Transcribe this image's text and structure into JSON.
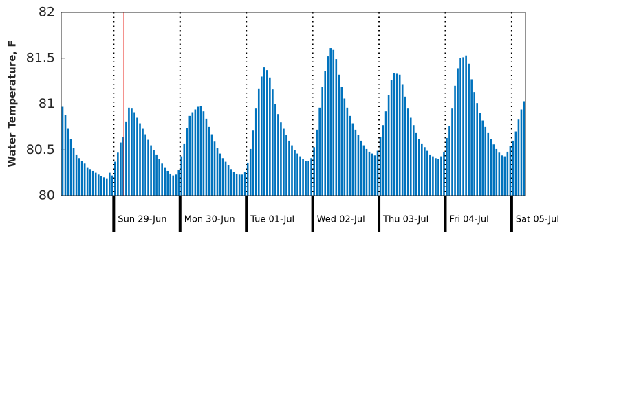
{
  "chart_data": {
    "type": "bar",
    "y_label": "Water Temperature, F",
    "color": "#0072bd",
    "categories": [
      null,
      null,
      null,
      null,
      null,
      null,
      null,
      null,
      null,
      null,
      null,
      null,
      null,
      null,
      null,
      null,
      null,
      null,
      null,
      "Sun 29-Jun",
      null,
      null,
      null,
      null,
      null,
      null,
      null,
      null,
      null,
      null,
      null,
      null,
      null,
      null,
      null,
      null,
      null,
      null,
      null,
      null,
      null,
      null,
      null,
      "Mon 30-Jun",
      null,
      null,
      null,
      null,
      null,
      null,
      null,
      null,
      null,
      null,
      null,
      null,
      null,
      null,
      null,
      null,
      null,
      null,
      null,
      null,
      null,
      null,
      null,
      "Tue 01-Jul",
      null,
      null,
      null,
      null,
      null,
      null,
      null,
      null,
      null,
      null,
      null,
      null,
      null,
      null,
      null,
      null,
      null,
      null,
      null,
      null,
      null,
      null,
      null,
      "Wed 02-Jul",
      null,
      null,
      null,
      null,
      null,
      null,
      null,
      null,
      null,
      null,
      null,
      null,
      null,
      null,
      null,
      null,
      null,
      null,
      null,
      null,
      null,
      null,
      null,
      "Thu 03-Jul",
      null,
      null,
      null,
      null,
      null,
      null,
      null,
      null,
      null,
      null,
      null,
      null,
      null,
      null,
      null,
      null,
      null,
      null,
      null,
      null,
      null,
      null,
      null,
      "Fri 04-Jul",
      null,
      null,
      null,
      null,
      null,
      null,
      null,
      null,
      null,
      null,
      null,
      null,
      null,
      null,
      null,
      null,
      null,
      null,
      null,
      null,
      null,
      null,
      null,
      "Sat 05-Jul",
      null,
      null,
      null,
      null
    ],
    "values": [
      80.97,
      80.88,
      80.73,
      80.62,
      80.52,
      80.45,
      80.41,
      80.38,
      80.35,
      80.31,
      80.29,
      80.27,
      80.25,
      80.23,
      80.21,
      80.2,
      80.19,
      80.25,
      80.22,
      80.37,
      80.47,
      80.58,
      80.64,
      80.81,
      80.96,
      80.95,
      80.91,
      80.85,
      80.79,
      80.73,
      80.67,
      80.61,
      80.55,
      80.5,
      80.45,
      80.4,
      80.35,
      80.31,
      80.27,
      80.24,
      80.22,
      80.23,
      80.28,
      80.43,
      80.57,
      80.74,
      80.87,
      80.91,
      80.94,
      80.97,
      80.98,
      80.92,
      80.84,
      80.75,
      80.67,
      80.59,
      80.52,
      80.46,
      80.41,
      80.37,
      80.33,
      80.29,
      80.26,
      80.24,
      80.23,
      80.23,
      80.26,
      80.36,
      80.51,
      80.71,
      80.95,
      81.17,
      81.3,
      81.4,
      81.37,
      81.29,
      81.16,
      81.0,
      80.89,
      80.8,
      80.73,
      80.66,
      80.6,
      80.55,
      80.5,
      80.46,
      80.43,
      80.4,
      80.38,
      80.38,
      80.41,
      80.53,
      80.72,
      80.96,
      81.19,
      81.36,
      81.52,
      81.61,
      81.59,
      81.49,
      81.32,
      81.19,
      81.06,
      80.96,
      80.87,
      80.79,
      80.72,
      80.66,
      80.6,
      80.55,
      80.51,
      80.48,
      80.46,
      80.44,
      80.49,
      80.64,
      80.77,
      80.92,
      81.1,
      81.26,
      81.34,
      81.33,
      81.32,
      81.21,
      81.08,
      80.95,
      80.85,
      80.77,
      80.69,
      80.62,
      80.57,
      80.53,
      80.49,
      80.45,
      80.43,
      80.41,
      80.4,
      80.43,
      80.48,
      80.63,
      80.76,
      80.95,
      81.2,
      81.39,
      81.5,
      81.51,
      81.53,
      81.44,
      81.27,
      81.13,
      81.01,
      80.9,
      80.82,
      80.75,
      80.69,
      80.62,
      80.56,
      80.51,
      80.47,
      80.44,
      80.43,
      80.48,
      80.54,
      80.6,
      80.7,
      80.83,
      80.94,
      81.03
    ],
    "ylim": [
      80,
      82
    ],
    "yticks": [
      80,
      80.5,
      81,
      81.5,
      82
    ]
  }
}
